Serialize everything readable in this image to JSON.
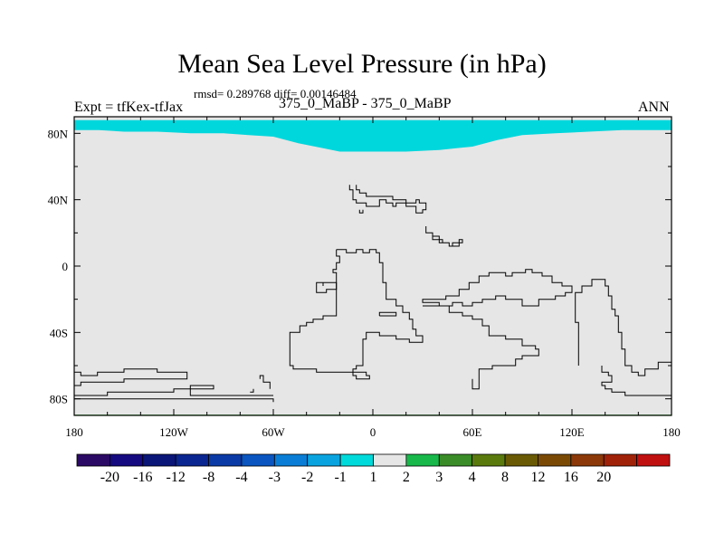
{
  "header": {
    "title": "Mean Sea Level Pressure (in hPa)",
    "stats": "rmsd= 0.289768 diff= 0.00146484",
    "experiment": "Expt = tfKex-tfJax",
    "subtitle": "375_0_MaBP - 375_0_MaBP",
    "season": "ANN"
  },
  "chart_data": {
    "type": "heatmap",
    "title": "Mean Sea Level Pressure (in hPa)",
    "xlabel": "",
    "ylabel": "",
    "xlim": [
      -180,
      180
    ],
    "ylim": [
      -90,
      90
    ],
    "x_ticks": [
      {
        "value": -180,
        "label": "180"
      },
      {
        "value": -120,
        "label": "120W"
      },
      {
        "value": -60,
        "label": "60W"
      },
      {
        "value": 0,
        "label": "0"
      },
      {
        "value": 60,
        "label": "60E"
      },
      {
        "value": 120,
        "label": "120E"
      },
      {
        "value": 180,
        "label": "180"
      }
    ],
    "y_ticks": [
      {
        "value": 80,
        "label": "80N"
      },
      {
        "value": 40,
        "label": "40N"
      },
      {
        "value": 0,
        "label": "0"
      },
      {
        "value": -40,
        "label": "40S"
      },
      {
        "value": -80,
        "label": "80S"
      }
    ],
    "background_color": "#e6e6e6",
    "regions": [
      {
        "band": "-2 to -1",
        "color": "#00d7dc",
        "boundary": [
          [
            -180,
            88
          ],
          [
            -180,
            82
          ],
          [
            -165,
            82
          ],
          [
            -150,
            81
          ],
          [
            -130,
            81
          ],
          [
            -110,
            80
          ],
          [
            -90,
            80
          ],
          [
            -75,
            79
          ],
          [
            -60,
            78
          ],
          [
            -45,
            74
          ],
          [
            -30,
            71
          ],
          [
            -20,
            69
          ],
          [
            0,
            69
          ],
          [
            20,
            69
          ],
          [
            40,
            70
          ],
          [
            60,
            72
          ],
          [
            75,
            76
          ],
          [
            90,
            79
          ],
          [
            110,
            80
          ],
          [
            130,
            81
          ],
          [
            150,
            82
          ],
          [
            165,
            82
          ],
          [
            180,
            82
          ],
          [
            180,
            88
          ]
        ]
      },
      {
        "band": "1 to 2",
        "color": "#18b418",
        "boundary": [
          [
            -180,
            -89.6
          ],
          [
            180,
            -89.6
          ],
          [
            180,
            -90
          ],
          [
            -180,
            -90
          ]
        ]
      }
    ],
    "coastlines": [
      [
        [
          -10,
          49
        ],
        [
          -10,
          46
        ],
        [
          -8,
          46
        ],
        [
          -8,
          44
        ],
        [
          -4,
          44
        ],
        [
          -4,
          42
        ],
        [
          12,
          42
        ],
        [
          12,
          40
        ],
        [
          20,
          40
        ],
        [
          20,
          38
        ],
        [
          26,
          38
        ],
        [
          26,
          40
        ],
        [
          28,
          40
        ],
        [
          28,
          38
        ],
        [
          32,
          38
        ],
        [
          32,
          34
        ],
        [
          30,
          34
        ],
        [
          30,
          32
        ],
        [
          26,
          32
        ],
        [
          26,
          36
        ],
        [
          20,
          36
        ],
        [
          20,
          38
        ],
        [
          14,
          38
        ],
        [
          14,
          36
        ],
        [
          12,
          36
        ],
        [
          12,
          38
        ],
        [
          8,
          38
        ],
        [
          8,
          40
        ],
        [
          4,
          40
        ],
        [
          4,
          36
        ],
        [
          -4,
          36
        ],
        [
          -4,
          38
        ],
        [
          -10,
          38
        ],
        [
          -10,
          40
        ],
        [
          -12,
          40
        ],
        [
          -12,
          46
        ],
        [
          -14,
          46
        ],
        [
          -14,
          49
        ]
      ],
      [
        [
          -8,
          34
        ],
        [
          -8,
          32
        ],
        [
          -6,
          32
        ],
        [
          -6,
          34
        ]
      ],
      [
        [
          32,
          24
        ],
        [
          32,
          20
        ],
        [
          36,
          20
        ],
        [
          36,
          18
        ],
        [
          40,
          18
        ],
        [
          40,
          16
        ],
        [
          42,
          16
        ],
        [
          42,
          14
        ],
        [
          46,
          14
        ],
        [
          46,
          12
        ],
        [
          48,
          12
        ],
        [
          48,
          14
        ],
        [
          52,
          14
        ],
        [
          52,
          16
        ],
        [
          54,
          16
        ],
        [
          54,
          14
        ],
        [
          52,
          14
        ],
        [
          52,
          12
        ],
        [
          46,
          12
        ],
        [
          46,
          14
        ],
        [
          40,
          14
        ],
        [
          40,
          16
        ],
        [
          36,
          16
        ],
        [
          36,
          20
        ],
        [
          32,
          20
        ],
        [
          32,
          24
        ]
      ],
      [
        [
          -22,
          10
        ],
        [
          -22,
          6
        ],
        [
          -20,
          6
        ],
        [
          -20,
          2
        ],
        [
          -22,
          2
        ],
        [
          -22,
          -2
        ],
        [
          -24,
          -2
        ],
        [
          -24,
          -4
        ],
        [
          -22,
          -4
        ],
        [
          -22,
          -30
        ],
        [
          -30,
          -30
        ],
        [
          -30,
          -32
        ],
        [
          -36,
          -32
        ],
        [
          -36,
          -34
        ],
        [
          -40,
          -34
        ],
        [
          -40,
          -36
        ],
        [
          -44,
          -36
        ],
        [
          -44,
          -40
        ],
        [
          -50,
          -40
        ],
        [
          -50,
          -60
        ],
        [
          -48,
          -60
        ],
        [
          -48,
          -62
        ],
        [
          -34,
          -62
        ],
        [
          -34,
          -64
        ],
        [
          -4,
          -64
        ],
        [
          -4,
          -66
        ],
        [
          -2,
          -66
        ],
        [
          -2,
          -68
        ],
        [
          -10,
          -68
        ],
        [
          -10,
          -66
        ],
        [
          -12,
          -66
        ],
        [
          -12,
          -62
        ],
        [
          -10,
          -62
        ],
        [
          -10,
          -60
        ],
        [
          -6,
          -60
        ],
        [
          -6,
          -44
        ],
        [
          -4,
          -44
        ],
        [
          -4,
          -40
        ],
        [
          4,
          -40
        ],
        [
          4,
          -42
        ],
        [
          14,
          -42
        ],
        [
          14,
          -44
        ],
        [
          22,
          -44
        ],
        [
          22,
          -46
        ],
        [
          30,
          -46
        ],
        [
          30,
          -42
        ],
        [
          26,
          -42
        ],
        [
          26,
          -38
        ],
        [
          24,
          -38
        ],
        [
          24,
          -32
        ],
        [
          22,
          -32
        ],
        [
          22,
          -28
        ],
        [
          18,
          -28
        ],
        [
          18,
          -24
        ],
        [
          14,
          -24
        ],
        [
          14,
          -20
        ],
        [
          8,
          -20
        ],
        [
          8,
          -10
        ],
        [
          6,
          -10
        ],
        [
          6,
          2
        ],
        [
          4,
          2
        ],
        [
          4,
          8
        ],
        [
          2,
          8
        ],
        [
          2,
          10
        ],
        [
          -2,
          10
        ],
        [
          -2,
          8
        ],
        [
          -6,
          8
        ],
        [
          -6,
          10
        ],
        [
          -10,
          10
        ],
        [
          -10,
          8
        ],
        [
          -16,
          8
        ],
        [
          -16,
          10
        ],
        [
          -22,
          10
        ]
      ],
      [
        [
          -30,
          -12
        ],
        [
          -30,
          -10
        ],
        [
          -22,
          -10
        ],
        [
          -22,
          -14
        ],
        [
          -28,
          -14
        ],
        [
          -28,
          -16
        ],
        [
          -34,
          -16
        ],
        [
          -34,
          -10
        ],
        [
          -30,
          -10
        ]
      ],
      [
        [
          4,
          -30
        ],
        [
          4,
          -28
        ],
        [
          14,
          -28
        ],
        [
          14,
          -30
        ],
        [
          4,
          -30
        ]
      ],
      [
        [
          60,
          -68
        ],
        [
          60,
          -74
        ],
        [
          64,
          -74
        ],
        [
          64,
          -62
        ],
        [
          72,
          -62
        ],
        [
          72,
          -60
        ],
        [
          86,
          -60
        ],
        [
          86,
          -56
        ],
        [
          90,
          -56
        ],
        [
          90,
          -54
        ],
        [
          100,
          -54
        ],
        [
          100,
          -50
        ],
        [
          98,
          -50
        ],
        [
          98,
          -48
        ],
        [
          90,
          -48
        ],
        [
          90,
          -44
        ],
        [
          80,
          -44
        ],
        [
          80,
          -42
        ],
        [
          70,
          -42
        ],
        [
          70,
          -36
        ],
        [
          66,
          -36
        ],
        [
          66,
          -32
        ],
        [
          60,
          -32
        ],
        [
          60,
          -30
        ],
        [
          54,
          -30
        ],
        [
          54,
          -28
        ],
        [
          46,
          -28
        ],
        [
          46,
          -24
        ],
        [
          40,
          -24
        ],
        [
          40,
          -22
        ],
        [
          30,
          -22
        ],
        [
          30,
          -20
        ],
        [
          44,
          -20
        ],
        [
          44,
          -18
        ],
        [
          52,
          -18
        ],
        [
          52,
          -14
        ],
        [
          58,
          -14
        ],
        [
          58,
          -10
        ],
        [
          64,
          -10
        ],
        [
          64,
          -6
        ],
        [
          70,
          -6
        ],
        [
          70,
          -4
        ],
        [
          80,
          -4
        ],
        [
          80,
          -6
        ],
        [
          84,
          -6
        ],
        [
          84,
          -4
        ],
        [
          92,
          -4
        ],
        [
          92,
          -2
        ],
        [
          96,
          -2
        ],
        [
          96,
          -4
        ],
        [
          102,
          -4
        ],
        [
          102,
          -6
        ],
        [
          108,
          -6
        ],
        [
          108,
          -10
        ],
        [
          114,
          -10
        ],
        [
          114,
          -12
        ],
        [
          120,
          -12
        ],
        [
          120,
          -16
        ],
        [
          116,
          -16
        ],
        [
          116,
          -18
        ],
        [
          110,
          -18
        ],
        [
          110,
          -20
        ],
        [
          100,
          -20
        ],
        [
          100,
          -24
        ],
        [
          90,
          -24
        ],
        [
          90,
          -20
        ],
        [
          80,
          -20
        ],
        [
          80,
          -18
        ],
        [
          74,
          -18
        ],
        [
          74,
          -20
        ],
        [
          66,
          -20
        ],
        [
          66,
          -22
        ],
        [
          60,
          -22
        ],
        [
          60,
          -24
        ],
        [
          54,
          -24
        ],
        [
          54,
          -22
        ],
        [
          48,
          -22
        ],
        [
          48,
          -24
        ],
        [
          30,
          -24
        ]
      ],
      [
        [
          124,
          -60
        ],
        [
          124,
          -34
        ],
        [
          122,
          -34
        ],
        [
          122,
          -16
        ],
        [
          126,
          -16
        ],
        [
          126,
          -12
        ],
        [
          132,
          -12
        ],
        [
          132,
          -8
        ],
        [
          140,
          -8
        ],
        [
          140,
          -12
        ],
        [
          142,
          -12
        ],
        [
          142,
          -18
        ],
        [
          144,
          -18
        ],
        [
          144,
          -26
        ],
        [
          146,
          -26
        ],
        [
          146,
          -30
        ],
        [
          148,
          -30
        ],
        [
          148,
          -40
        ],
        [
          150,
          -40
        ],
        [
          150,
          -50
        ],
        [
          152,
          -50
        ],
        [
          152,
          -60
        ],
        [
          156,
          -60
        ],
        [
          156,
          -64
        ],
        [
          160,
          -64
        ],
        [
          160,
          -66
        ],
        [
          164,
          -66
        ],
        [
          164,
          -62
        ],
        [
          172,
          -62
        ],
        [
          172,
          -58
        ],
        [
          180,
          -58
        ]
      ],
      [
        [
          138,
          -60
        ],
        [
          138,
          -64
        ],
        [
          142,
          -64
        ],
        [
          142,
          -66
        ],
        [
          144,
          -66
        ],
        [
          144,
          -70
        ],
        [
          138,
          -70
        ],
        [
          138,
          -72
        ],
        [
          140,
          -72
        ],
        [
          140,
          -74
        ],
        [
          144,
          -74
        ],
        [
          144,
          -76
        ],
        [
          152,
          -76
        ],
        [
          152,
          -78
        ],
        [
          180,
          -78
        ]
      ],
      [
        [
          -180,
          -64
        ],
        [
          -176,
          -64
        ],
        [
          -176,
          -66
        ],
        [
          -166,
          -66
        ],
        [
          -166,
          -64
        ],
        [
          -150,
          -64
        ],
        [
          -150,
          -62
        ],
        [
          -130,
          -62
        ],
        [
          -130,
          -64
        ],
        [
          -112,
          -64
        ],
        [
          -112,
          -68
        ],
        [
          -150,
          -68
        ],
        [
          -150,
          -70
        ],
        [
          -176,
          -70
        ],
        [
          -176,
          -72
        ],
        [
          -180,
          -72
        ]
      ],
      [
        [
          -180,
          -78
        ],
        [
          -160,
          -78
        ],
        [
          -160,
          -76
        ],
        [
          -120,
          -76
        ],
        [
          -120,
          -74
        ],
        [
          -96,
          -74
        ],
        [
          -96,
          -72
        ],
        [
          -110,
          -72
        ],
        [
          -110,
          -78
        ],
        [
          -60,
          -78
        ]
      ],
      [
        [
          -68,
          -68
        ],
        [
          -68,
          -66
        ],
        [
          -66,
          -66
        ],
        [
          -66,
          -70
        ],
        [
          -62,
          -70
        ],
        [
          -62,
          -74
        ]
      ],
      [
        [
          -74,
          -76
        ],
        [
          -72,
          -76
        ],
        [
          -72,
          -74
        ]
      ],
      [
        [
          -180,
          -80
        ],
        [
          -60,
          -80
        ],
        [
          -60,
          -82
        ]
      ]
    ],
    "colorbar": {
      "bounds": [
        "-20",
        "-16",
        "-12",
        "-8",
        "-4",
        "-3",
        "-2",
        "-1",
        "1",
        "2",
        "3",
        "4",
        "8",
        "12",
        "16",
        "20"
      ],
      "colors": [
        "#2b0a65",
        "#150a80",
        "#0a1678",
        "#0a2690",
        "#0a3aa5",
        "#0a55c0",
        "#0a7ed6",
        "#09a4e0",
        "#00dada",
        "#e6e6e6",
        "#18b84a",
        "#3a8c28",
        "#5a7a0e",
        "#6a5a05",
        "#7a4a05",
        "#8c3808",
        "#a02208",
        "#c01010"
      ]
    }
  }
}
